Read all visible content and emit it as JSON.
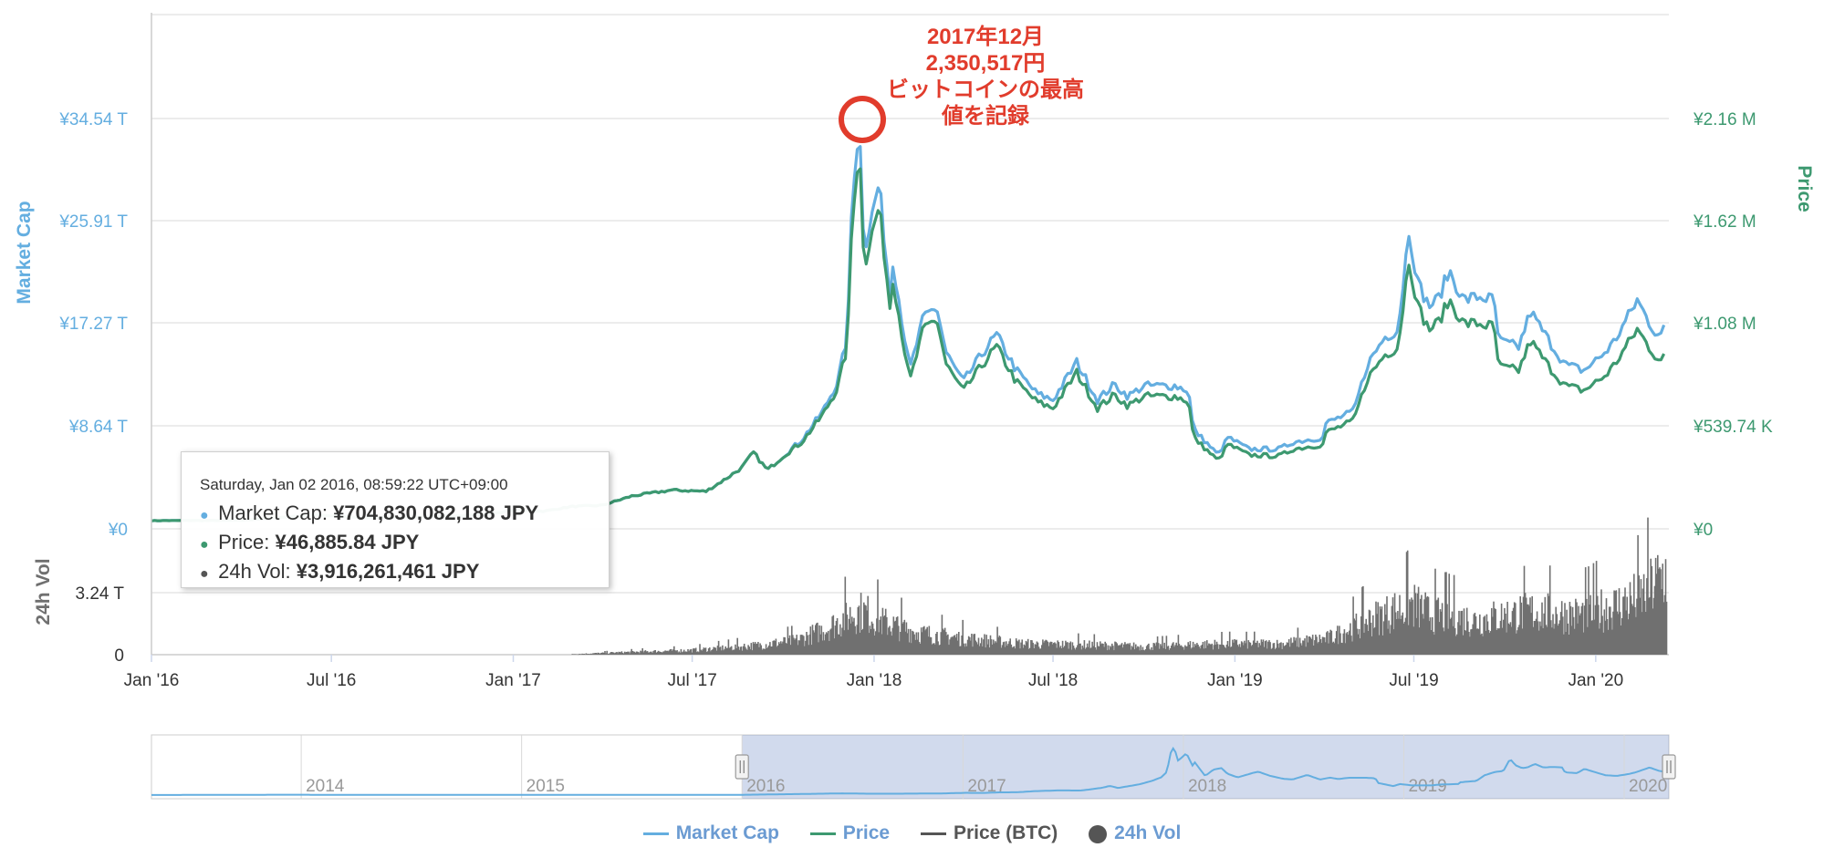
{
  "chart_data": {
    "type": "line",
    "annotation": [
      "2017年12月",
      "2,350,517円",
      "ビットコインの最高",
      "値を記録"
    ],
    "y_left": {
      "label": "Market Cap",
      "ticks": [
        "¥34.54 T",
        "¥25.91 T",
        "¥17.27 T",
        "¥8.64 T",
        "¥0"
      ],
      "range_T": [
        0,
        44
      ]
    },
    "y_right": {
      "label": "Price",
      "ticks": [
        "¥2.16 M",
        "¥1.62 M",
        "¥1.08 M",
        "¥539.74 K",
        "¥0"
      ],
      "range_M": [
        0,
        2.75
      ]
    },
    "vol_axis": {
      "label": "24h Vol",
      "ticks": [
        "3.24 T",
        "0"
      ],
      "range_T": [
        0,
        6.5
      ]
    },
    "x_ticks": [
      "Jan '16",
      "Jul '16",
      "Jan '17",
      "Jul '17",
      "Jan '18",
      "Jul '18",
      "Jan '19",
      "Jul '19",
      "Jan '20"
    ],
    "x_range": [
      "2016-01-01",
      "2020-03-15"
    ],
    "series": [
      {
        "name": "Market Cap",
        "color": "#64aee0",
        "points": [
          [
            "2016-01-01",
            0.7
          ],
          [
            "2016-04-01",
            0.72
          ],
          [
            "2016-06-15",
            1.2
          ],
          [
            "2016-08-01",
            0.95
          ],
          [
            "2016-10-01",
            1.0
          ],
          [
            "2016-12-01",
            1.2
          ],
          [
            "2017-01-05",
            1.6
          ],
          [
            "2017-02-01",
            1.5
          ],
          [
            "2017-03-01",
            1.9
          ],
          [
            "2017-04-01",
            2.0
          ],
          [
            "2017-05-01",
            2.8
          ],
          [
            "2017-06-10",
            3.3
          ],
          [
            "2017-07-15",
            3.2
          ],
          [
            "2017-08-01",
            4.1
          ],
          [
            "2017-08-20",
            5.2
          ],
          [
            "2017-09-01",
            6.5
          ],
          [
            "2017-09-15",
            5.0
          ],
          [
            "2017-10-01",
            6.2
          ],
          [
            "2017-10-20",
            7.6
          ],
          [
            "2017-11-10",
            10.0
          ],
          [
            "2017-11-25",
            12.5
          ],
          [
            "2017-12-05",
            16.5
          ],
          [
            "2017-12-10",
            29.0
          ],
          [
            "2017-12-17",
            34.5
          ],
          [
            "2017-12-22",
            24.0
          ],
          [
            "2017-12-28",
            26.0
          ],
          [
            "2018-01-06",
            29.5
          ],
          [
            "2018-01-10",
            26.0
          ],
          [
            "2018-01-17",
            20.0
          ],
          [
            "2018-01-20",
            23.0
          ],
          [
            "2018-02-06",
            13.5
          ],
          [
            "2018-02-20",
            18.0
          ],
          [
            "2018-03-05",
            19.0
          ],
          [
            "2018-03-15",
            15.0
          ],
          [
            "2018-04-01",
            12.5
          ],
          [
            "2018-04-25",
            15.5
          ],
          [
            "2018-05-05",
            16.5
          ],
          [
            "2018-05-25",
            13.5
          ],
          [
            "2018-06-15",
            11.5
          ],
          [
            "2018-07-01",
            11.0
          ],
          [
            "2018-07-25",
            14.2
          ],
          [
            "2018-08-15",
            11.0
          ],
          [
            "2018-09-01",
            12.3
          ],
          [
            "2018-09-15",
            11.3
          ],
          [
            "2018-10-01",
            12.2
          ],
          [
            "2018-11-01",
            12.2
          ],
          [
            "2018-11-15",
            11.8
          ],
          [
            "2018-11-20",
            8.5
          ],
          [
            "2018-12-15",
            6.3
          ],
          [
            "2018-12-25",
            7.8
          ],
          [
            "2019-01-15",
            6.8
          ],
          [
            "2019-02-15",
            6.8
          ],
          [
            "2019-03-01",
            7.4
          ],
          [
            "2019-04-01",
            7.8
          ],
          [
            "2019-04-03",
            9.0
          ],
          [
            "2019-05-01",
            10.0
          ],
          [
            "2019-05-15",
            14.0
          ],
          [
            "2019-06-01",
            16.3
          ],
          [
            "2019-06-15",
            17.0
          ],
          [
            "2019-06-26",
            25.5
          ],
          [
            "2019-07-05",
            21.0
          ],
          [
            "2019-07-16",
            19.0
          ],
          [
            "2019-07-25",
            19.5
          ],
          [
            "2019-08-06",
            22.0
          ],
          [
            "2019-08-20",
            19.5
          ],
          [
            "2019-09-05",
            19.8
          ],
          [
            "2019-09-20",
            19.5
          ],
          [
            "2019-09-25",
            16.0
          ],
          [
            "2019-10-15",
            15.5
          ],
          [
            "2019-10-27",
            18.5
          ],
          [
            "2019-11-15",
            16.0
          ],
          [
            "2019-12-01",
            14.0
          ],
          [
            "2019-12-20",
            13.5
          ],
          [
            "2020-01-10",
            15.0
          ],
          [
            "2020-01-20",
            16.0
          ],
          [
            "2020-02-12",
            19.5
          ],
          [
            "2020-02-28",
            17.0
          ],
          [
            "2020-03-08",
            16.5
          ],
          [
            "2020-03-12",
            17.5
          ]
        ]
      },
      {
        "name": "Price",
        "color": "#3d9970",
        "points": [
          [
            "2016-01-01",
            0.7
          ],
          [
            "2016-04-01",
            0.72
          ],
          [
            "2016-06-15",
            1.2
          ],
          [
            "2016-08-01",
            0.95
          ],
          [
            "2016-10-01",
            1.0
          ],
          [
            "2016-12-01",
            1.2
          ],
          [
            "2017-01-05",
            1.6
          ],
          [
            "2017-02-01",
            1.5
          ],
          [
            "2017-03-01",
            1.9
          ],
          [
            "2017-04-01",
            2.0
          ],
          [
            "2017-05-01",
            2.8
          ],
          [
            "2017-06-10",
            3.3
          ],
          [
            "2017-07-15",
            3.2
          ],
          [
            "2017-08-01",
            4.1
          ],
          [
            "2017-08-20",
            5.2
          ],
          [
            "2017-09-01",
            6.5
          ],
          [
            "2017-09-15",
            5.0
          ],
          [
            "2017-10-01",
            6.2
          ],
          [
            "2017-10-20",
            7.4
          ],
          [
            "2017-11-10",
            9.7
          ],
          [
            "2017-11-25",
            12.0
          ],
          [
            "2017-12-05",
            15.5
          ],
          [
            "2017-12-10",
            27.0
          ],
          [
            "2017-12-17",
            32.5
          ],
          [
            "2017-12-22",
            22.5
          ],
          [
            "2017-12-28",
            24.5
          ],
          [
            "2018-01-06",
            27.5
          ],
          [
            "2018-01-10",
            24.5
          ],
          [
            "2018-01-17",
            19.0
          ],
          [
            "2018-01-20",
            21.5
          ],
          [
            "2018-02-06",
            12.5
          ],
          [
            "2018-02-20",
            17.0
          ],
          [
            "2018-03-05",
            18.0
          ],
          [
            "2018-03-15",
            14.0
          ],
          [
            "2018-04-01",
            11.7
          ],
          [
            "2018-04-25",
            14.5
          ],
          [
            "2018-05-05",
            15.5
          ],
          [
            "2018-05-25",
            12.5
          ],
          [
            "2018-06-15",
            10.8
          ],
          [
            "2018-07-01",
            10.3
          ],
          [
            "2018-07-25",
            13.3
          ],
          [
            "2018-08-15",
            10.3
          ],
          [
            "2018-09-01",
            11.4
          ],
          [
            "2018-09-15",
            10.5
          ],
          [
            "2018-10-01",
            11.3
          ],
          [
            "2018-11-01",
            11.3
          ],
          [
            "2018-11-15",
            10.9
          ],
          [
            "2018-11-20",
            7.8
          ],
          [
            "2018-12-15",
            5.8
          ],
          [
            "2018-12-25",
            7.2
          ],
          [
            "2019-01-15",
            6.3
          ],
          [
            "2019-02-15",
            6.2
          ],
          [
            "2019-03-01",
            6.8
          ],
          [
            "2019-04-01",
            7.2
          ],
          [
            "2019-04-03",
            8.2
          ],
          [
            "2019-05-01",
            9.2
          ],
          [
            "2019-05-15",
            12.8
          ],
          [
            "2019-06-01",
            14.8
          ],
          [
            "2019-06-15",
            15.5
          ],
          [
            "2019-06-26",
            23.0
          ],
          [
            "2019-07-05",
            19.0
          ],
          [
            "2019-07-16",
            17.0
          ],
          [
            "2019-07-25",
            17.5
          ],
          [
            "2019-08-06",
            19.5
          ],
          [
            "2019-08-20",
            17.5
          ],
          [
            "2019-09-05",
            17.5
          ],
          [
            "2019-09-20",
            17.2
          ],
          [
            "2019-09-25",
            13.8
          ],
          [
            "2019-10-15",
            13.5
          ],
          [
            "2019-10-27",
            16.0
          ],
          [
            "2019-11-15",
            13.8
          ],
          [
            "2019-12-01",
            12.2
          ],
          [
            "2019-12-20",
            11.8
          ],
          [
            "2020-01-10",
            13.0
          ],
          [
            "2020-01-20",
            14.0
          ],
          [
            "2020-02-12",
            17.0
          ],
          [
            "2020-02-28",
            15.0
          ],
          [
            "2020-03-08",
            14.2
          ],
          [
            "2020-03-12",
            15.0
          ]
        ]
      }
    ],
    "volume": {
      "name": "24h Vol",
      "color": "#707070",
      "points_T": [
        [
          "2016-01-01",
          0.0
        ],
        [
          "2017-03-01",
          0.03
        ],
        [
          "2017-05-01",
          0.15
        ],
        [
          "2017-07-01",
          0.25
        ],
        [
          "2017-09-01",
          0.5
        ],
        [
          "2017-10-15",
          0.8
        ],
        [
          "2017-11-15",
          1.5
        ],
        [
          "2017-12-10",
          2.3
        ],
        [
          "2017-12-20",
          2.4
        ],
        [
          "2018-01-10",
          1.8
        ],
        [
          "2018-02-15",
          1.2
        ],
        [
          "2018-04-01",
          0.9
        ],
        [
          "2018-06-01",
          0.6
        ],
        [
          "2018-08-01",
          0.55
        ],
        [
          "2018-10-01",
          0.45
        ],
        [
          "2018-11-20",
          0.55
        ],
        [
          "2018-12-20",
          0.6
        ],
        [
          "2019-02-15",
          0.6
        ],
        [
          "2019-04-05",
          0.9
        ],
        [
          "2019-05-15",
          1.9
        ],
        [
          "2019-06-28",
          2.8
        ],
        [
          "2019-07-15",
          2.3
        ],
        [
          "2019-09-01",
          1.9
        ],
        [
          "2019-10-27",
          2.4
        ],
        [
          "2019-12-15",
          2.2
        ],
        [
          "2020-01-20",
          2.7
        ],
        [
          "2020-02-15",
          3.2
        ],
        [
          "2020-03-12",
          4.6
        ]
      ]
    },
    "navigator": {
      "labels": [
        "2014",
        "2015",
        "2016",
        "2017",
        "2018",
        "2019",
        "2020"
      ],
      "selected_range": [
        "2016-01-01",
        "2020-03-15"
      ]
    }
  },
  "tooltip": {
    "date": "Saturday, Jan 02 2016, 08:59:22 UTC+09:00",
    "rows": [
      {
        "label": "Market Cap:",
        "value": "¥704,830,082,188 JPY",
        "color": "#64aee0"
      },
      {
        "label": "Price:",
        "value": "¥46,885.84 JPY",
        "color": "#3d9970"
      },
      {
        "label": "24h Vol:",
        "value": "¥3,916,261,461 JPY",
        "color": "#555555"
      }
    ]
  },
  "legend": [
    {
      "label": "Market Cap",
      "color": "#64aee0",
      "shape": "line",
      "text_color": "#6b9bd2"
    },
    {
      "label": "Price",
      "color": "#3d9970",
      "shape": "line",
      "text_color": "#6b9bd2"
    },
    {
      "label": "Price (BTC)",
      "color": "#555555",
      "shape": "line",
      "text_color": "#555555"
    },
    {
      "label": "24h Vol",
      "color": "#555555",
      "shape": "circle",
      "text_color": "#6b9bd2"
    }
  ]
}
